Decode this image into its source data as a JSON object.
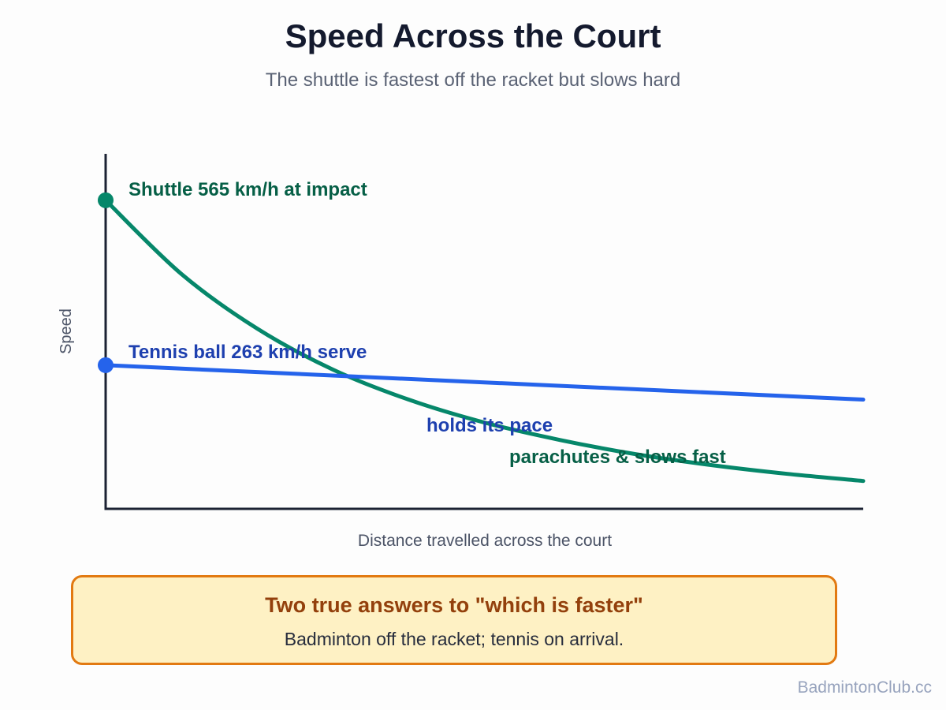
{
  "header": {
    "title": "Speed Across the Court",
    "subtitle": "The shuttle is fastest off the racket but slows hard"
  },
  "chart_data": {
    "type": "line",
    "xlabel": "Distance travelled across the court",
    "ylabel": "Speed",
    "xlim": [
      0,
      1
    ],
    "ylim": [
      0,
      650
    ],
    "grid": false,
    "series": [
      {
        "name": "Shuttle",
        "color": "#06876a",
        "label_color": "#065f46",
        "x": [
          0,
          0.1,
          0.2,
          0.3,
          0.4,
          0.5,
          0.6,
          0.7,
          0.8,
          0.9,
          1.0
        ],
        "y": [
          565,
          430,
          330,
          255,
          200,
          158,
          126,
          100,
          80,
          64,
          51
        ],
        "start_label": "Shuttle 565 km/h at impact",
        "trend_label": "parachutes & slows fast"
      },
      {
        "name": "Tennis ball",
        "color": "#2563eb",
        "label_color": "#1e40af",
        "x": [
          0,
          1.0
        ],
        "y": [
          263,
          200
        ],
        "start_label": "Tennis ball 263 km/h serve",
        "trend_label": "holds its pace"
      }
    ]
  },
  "callout": {
    "heading": "Two true answers to \"which is faster\"",
    "body": "Badminton off the racket; tennis on arrival."
  },
  "footer": {
    "watermark": "BadmintonClub.cc"
  }
}
